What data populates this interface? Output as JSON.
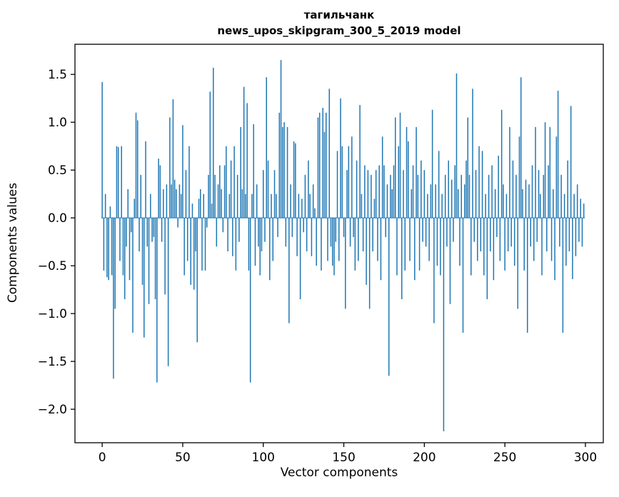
{
  "chart_data": {
    "type": "bar",
    "title_line1": "тагильчанк",
    "title_line2": "news_upos_skipgram_300_5_2019 model",
    "xlabel": "Vector components",
    "ylabel": "Components values",
    "bar_color": "#1f77b4",
    "axis_color": "#000000",
    "xlim": [
      -16.9,
      311.1
    ],
    "ylim": [
      -2.35,
      1.815
    ],
    "x_ticks": [
      {
        "value": 0,
        "label": "0"
      },
      {
        "value": 50,
        "label": "50"
      },
      {
        "value": 100,
        "label": "100"
      },
      {
        "value": 150,
        "label": "150"
      },
      {
        "value": 200,
        "label": "200"
      },
      {
        "value": 250,
        "label": "250"
      },
      {
        "value": 300,
        "label": "300"
      }
    ],
    "y_ticks": [
      {
        "value": 1.5,
        "label": "1.5"
      },
      {
        "value": 1.0,
        "label": "1.0"
      },
      {
        "value": 0.5,
        "label": "0.5"
      },
      {
        "value": 0.0,
        "label": "0.0"
      },
      {
        "value": -0.5,
        "label": "−0.5"
      },
      {
        "value": -1.0,
        "label": "−1.0"
      },
      {
        "value": -1.5,
        "label": "−1.5"
      },
      {
        "value": -2.0,
        "label": "−2.0"
      }
    ],
    "values": [
      1.42,
      -0.55,
      0.25,
      -0.62,
      -0.65,
      0.12,
      -0.6,
      -1.68,
      -0.95,
      0.75,
      0.74,
      -0.45,
      0.75,
      -0.6,
      -0.85,
      -0.3,
      0.3,
      -0.65,
      -0.15,
      -1.2,
      0.2,
      1.1,
      1.02,
      -0.35,
      0.45,
      -0.7,
      -1.25,
      0.8,
      -0.3,
      -0.9,
      0.25,
      -0.25,
      -0.2,
      -0.85,
      -1.72,
      0.62,
      0.55,
      -0.25,
      0.3,
      -0.8,
      0.35,
      -1.55,
      1.05,
      0.35,
      1.24,
      0.4,
      0.3,
      -0.1,
      0.35,
      0.25,
      0.97,
      -0.6,
      0.5,
      -0.45,
      0.75,
      -0.7,
      0.15,
      -0.75,
      -0.35,
      -1.3,
      0.2,
      0.3,
      -0.55,
      0.25,
      -0.55,
      -0.1,
      0.45,
      1.32,
      0.15,
      1.57,
      0.45,
      -0.3,
      0.35,
      0.55,
      0.3,
      -0.15,
      0.55,
      0.75,
      -0.35,
      0.25,
      0.6,
      -0.4,
      0.75,
      -0.55,
      0.45,
      -0.25,
      0.95,
      0.3,
      1.37,
      0.25,
      1.2,
      -0.55,
      -1.72,
      0.25,
      0.98,
      -0.5,
      0.35,
      -0.3,
      -0.6,
      -0.35,
      0.5,
      -0.25,
      1.47,
      0.6,
      -0.65,
      0.25,
      -0.45,
      0.5,
      0.25,
      -0.2,
      1.1,
      1.65,
      0.95,
      1.0,
      -0.3,
      0.95,
      -1.1,
      0.35,
      -0.2,
      0.8,
      0.78,
      -0.4,
      0.25,
      -0.85,
      0.2,
      -0.15,
      0.45,
      -0.35,
      0.6,
      0.25,
      -0.4,
      0.35,
      0.1,
      -0.5,
      1.05,
      1.1,
      -0.55,
      1.15,
      0.9,
      1.1,
      -0.45,
      1.35,
      -0.3,
      -0.5,
      -0.6,
      -0.25,
      0.7,
      -0.45,
      1.25,
      0.75,
      -0.2,
      -0.95,
      0.5,
      0.75,
      -0.3,
      0.85,
      -0.2,
      -0.55,
      0.6,
      -0.45,
      1.18,
      0.25,
      -0.35,
      0.55,
      -0.7,
      0.5,
      -0.95,
      0.45,
      -0.35,
      0.2,
      0.5,
      -0.45,
      0.55,
      -0.65,
      0.85,
      0.55,
      -0.2,
      0.35,
      -1.65,
      0.45,
      0.3,
      0.55,
      1.05,
      -0.6,
      0.75,
      1.1,
      -0.85,
      0.5,
      -0.55,
      0.95,
      0.8,
      -0.45,
      0.3,
      0.55,
      -0.65,
      0.95,
      0.45,
      -0.55,
      0.6,
      -0.25,
      0.5,
      -0.3,
      0.25,
      -0.45,
      0.35,
      1.13,
      -1.1,
      0.35,
      -0.5,
      0.7,
      -0.6,
      0.25,
      -2.23,
      0.45,
      -0.3,
      0.6,
      -0.9,
      0.4,
      -0.25,
      0.55,
      1.51,
      0.3,
      -0.5,
      0.45,
      -1.2,
      0.35,
      0.6,
      1.05,
      0.45,
      -0.6,
      1.35,
      -0.25,
      0.5,
      -0.45,
      0.75,
      -0.35,
      0.7,
      -0.6,
      0.25,
      -0.85,
      0.45,
      -0.35,
      0.55,
      -0.65,
      0.3,
      -0.2,
      0.65,
      -0.45,
      1.13,
      0.35,
      -0.55,
      0.25,
      -0.35,
      0.95,
      -0.3,
      0.6,
      -0.5,
      0.45,
      -0.95,
      0.85,
      1.47,
      0.3,
      -0.55,
      0.4,
      -1.2,
      0.35,
      -0.3,
      0.55,
      -0.45,
      0.95,
      -0.25,
      0.5,
      0.25,
      -0.6,
      0.45,
      1.0,
      -0.35,
      0.55,
      0.95,
      -0.45,
      0.3,
      -0.65,
      0.85,
      1.33,
      -0.3,
      0.45,
      -1.2,
      0.25,
      -0.5,
      0.6,
      -0.35,
      1.17,
      -0.64,
      0.25,
      -0.4,
      0.35,
      -0.25,
      0.2,
      -0.3,
      0.15
    ]
  }
}
